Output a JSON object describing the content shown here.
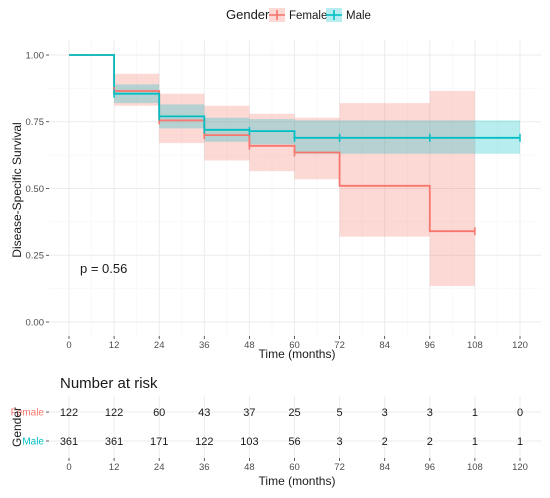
{
  "chart_data": {
    "type": "kaplan-meier",
    "legend": {
      "title": "Gender",
      "position": "top",
      "entries": [
        {
          "name": "Female",
          "color": "#F8766D"
        },
        {
          "name": "Male",
          "color": "#00BFC4"
        }
      ]
    },
    "xlabel": "Time (months)",
    "ylabel": "Disease-Specific Survival",
    "xlim": [
      0,
      120
    ],
    "ylim": [
      0,
      1
    ],
    "x_ticks": [
      "0",
      "12",
      "24",
      "36",
      "48",
      "60",
      "72",
      "84",
      "96",
      "108",
      "120"
    ],
    "y_ticks": [
      "0.00",
      "0.25",
      "0.50",
      "0.75",
      "1.00"
    ],
    "annotation": "p = 0.56",
    "grid": true,
    "series": [
      {
        "name": "Female",
        "color": "#F8766D",
        "steps": [
          [
            0,
            1.0
          ],
          [
            12,
            0.865
          ],
          [
            24,
            0.755
          ],
          [
            36,
            0.7
          ],
          [
            48,
            0.66
          ],
          [
            60,
            0.635
          ],
          [
            72,
            0.51
          ],
          [
            96,
            0.34
          ],
          [
            108,
            0.34
          ]
        ],
        "lower": [
          [
            0,
            1.0
          ],
          [
            12,
            0.81
          ],
          [
            24,
            0.67
          ],
          [
            36,
            0.605
          ],
          [
            48,
            0.565
          ],
          [
            60,
            0.535
          ],
          [
            72,
            0.32
          ],
          [
            96,
            0.135
          ],
          [
            108,
            0.135
          ]
        ],
        "upper": [
          [
            0,
            1.0
          ],
          [
            12,
            0.93
          ],
          [
            24,
            0.855
          ],
          [
            36,
            0.81
          ],
          [
            48,
            0.78
          ],
          [
            60,
            0.765
          ],
          [
            72,
            0.82
          ],
          [
            96,
            0.865
          ],
          [
            108,
            0.865
          ]
        ],
        "censor_times": [
          12,
          24,
          36,
          48,
          60,
          108
        ]
      },
      {
        "name": "Male",
        "color": "#00BFC4",
        "steps": [
          [
            0,
            1.0
          ],
          [
            12,
            0.855
          ],
          [
            24,
            0.77
          ],
          [
            36,
            0.72
          ],
          [
            48,
            0.715
          ],
          [
            60,
            0.69
          ],
          [
            120,
            0.69
          ]
        ],
        "lower": [
          [
            0,
            1.0
          ],
          [
            12,
            0.82
          ],
          [
            24,
            0.725
          ],
          [
            36,
            0.675
          ],
          [
            48,
            0.665
          ],
          [
            60,
            0.63
          ],
          [
            120,
            0.63
          ]
        ],
        "upper": [
          [
            0,
            1.0
          ],
          [
            12,
            0.89
          ],
          [
            24,
            0.815
          ],
          [
            36,
            0.765
          ],
          [
            48,
            0.76
          ],
          [
            60,
            0.755
          ],
          [
            120,
            0.755
          ]
        ],
        "censor_times": [
          12,
          24,
          36,
          48,
          60,
          72,
          96,
          120
        ]
      }
    ],
    "risk_table": {
      "title": "Number at risk",
      "ylabel": "Gender",
      "xlabel": "Time (months)",
      "x_ticks": [
        "0",
        "12",
        "24",
        "36",
        "48",
        "60",
        "72",
        "84",
        "96",
        "108",
        "120"
      ],
      "rows": [
        {
          "name": "Female",
          "color": "#F8766D",
          "values": [
            "122",
            "122",
            "60",
            "43",
            "37",
            "25",
            "5",
            "3",
            "3",
            "1",
            "0"
          ]
        },
        {
          "name": "Male",
          "color": "#00BFC4",
          "values": [
            "361",
            "361",
            "171",
            "122",
            "103",
            "56",
            "3",
            "2",
            "2",
            "1",
            "1"
          ]
        }
      ]
    }
  }
}
